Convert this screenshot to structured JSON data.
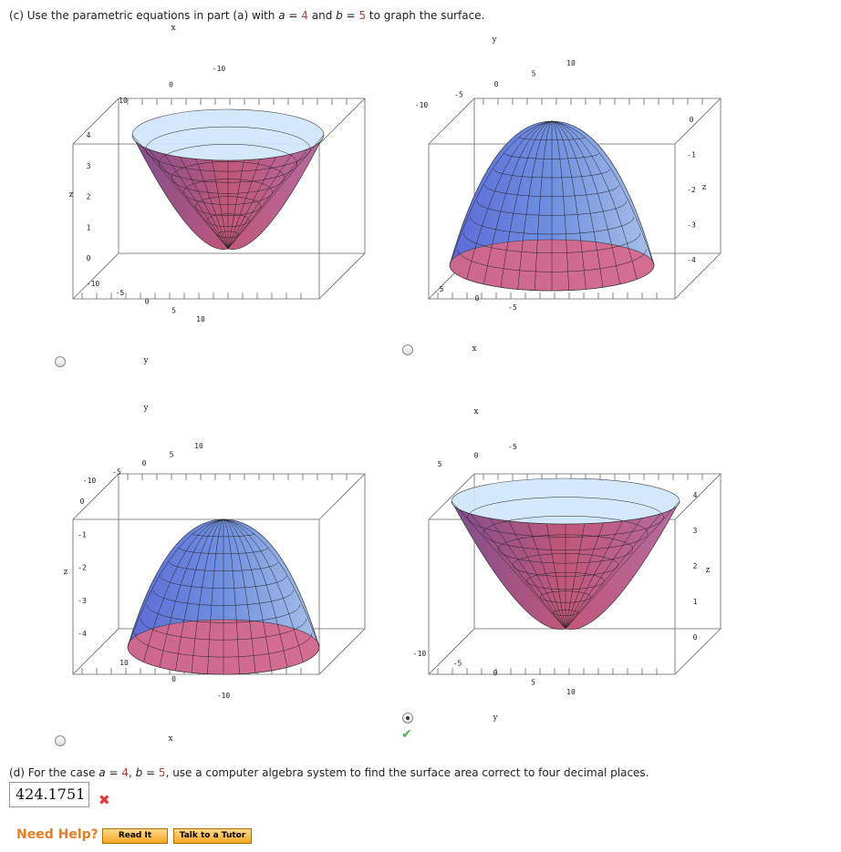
{
  "part_c": {
    "prefix": "(c) Use the parametric equations in part (a) with ",
    "a_label": "a = ",
    "a_value": "4",
    "and": " and ",
    "b_label": "b = ",
    "b_value": "5",
    "suffix": " to graph the surface."
  },
  "options": [
    {
      "id": "A",
      "selected": false,
      "shape": "cone-opening-up",
      "top": [
        "-10",
        "0",
        "10"
      ],
      "left": [
        "4",
        "3",
        "2",
        "1",
        "0"
      ],
      "bottom": [
        "-10",
        "-5",
        "0",
        "5",
        "10"
      ],
      "axis_x": "x",
      "axis_y": "y",
      "axis_z": "z"
    },
    {
      "id": "B",
      "selected": false,
      "shape": "dome-downward",
      "top": [
        "10",
        "5",
        "0",
        "-5",
        "-10"
      ],
      "right": [
        "0",
        "-1",
        "-2",
        "-3",
        "-4"
      ],
      "bottom": [
        "5",
        "0",
        "-5"
      ],
      "axis_x": "x",
      "axis_y": "y",
      "axis_z": "z"
    },
    {
      "id": "C",
      "selected": false,
      "shape": "cone-downward",
      "top": [
        "10",
        "5",
        "0",
        "-5",
        "-10"
      ],
      "left": [
        "0",
        "-1",
        "-2",
        "-3",
        "-4"
      ],
      "bottom": [
        "10",
        "0",
        "-10"
      ],
      "axis_x": "x",
      "axis_y": "y",
      "axis_z": "z"
    },
    {
      "id": "D",
      "selected": true,
      "correct": true,
      "shape": "paraboloid-up",
      "top": [
        "-5",
        "0",
        "5"
      ],
      "right": [
        "4",
        "3",
        "2",
        "1",
        "0"
      ],
      "bottom": [
        "-10",
        "-5",
        "0",
        "5",
        "10"
      ],
      "axis_x": "x",
      "axis_y": "y",
      "axis_z": "z"
    }
  ],
  "part_d": {
    "prefix": "(d) For the case ",
    "a_label": "a = ",
    "a_value": "4",
    "comma": ", ",
    "b_label": "b = ",
    "b_value": "5",
    "suffix": ", use a computer algebra system to find the surface area correct to four decimal places.",
    "answer": "424.1751",
    "status": "incorrect"
  },
  "help": {
    "label": "Need Help?",
    "read_it": "Read It",
    "talk": "Talk to a Tutor"
  },
  "colors": {
    "accent": "#e67e22",
    "correct": "#4caf50",
    "incorrect": "#e53935",
    "surface_top": "#7aa7e8",
    "surface_bottom": "#c2577a"
  }
}
